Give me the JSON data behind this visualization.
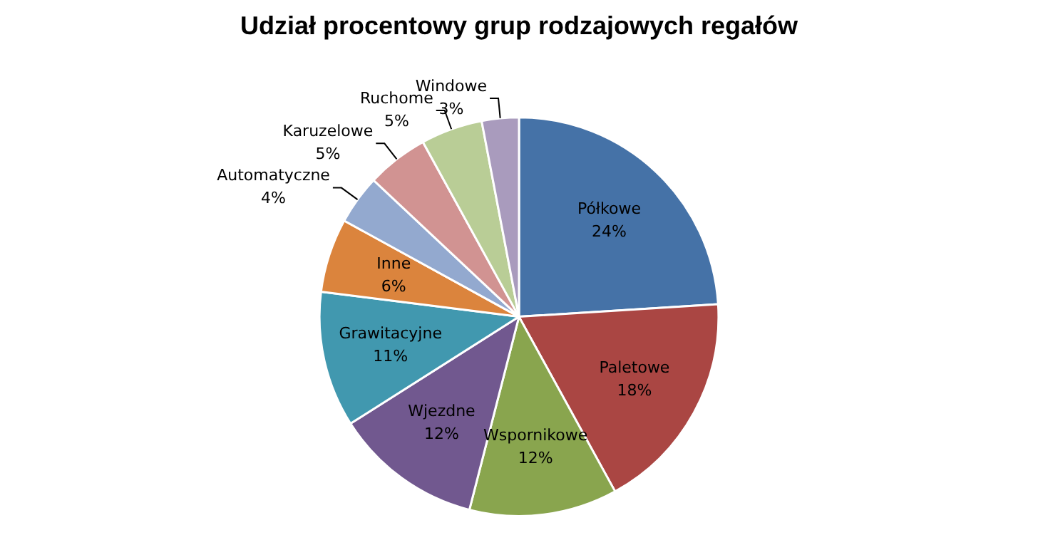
{
  "chart_data": {
    "type": "pie",
    "title": "Udział procentowy grup rodzajowych regałów",
    "categories": [
      "Półkowe",
      "Paletowe",
      "Wspornikowe",
      "Wjezdne",
      "Grawitacyjne",
      "Inne",
      "Automatyczne",
      "Karuzelowe",
      "Ruchome",
      "Windowe"
    ],
    "values": [
      24,
      18,
      12,
      12,
      11,
      6,
      4,
      5,
      5,
      3
    ],
    "value_labels": [
      "24%",
      "18%",
      "12%",
      "12%",
      "11%",
      "6%",
      "4%",
      "5%",
      "5%",
      "3%"
    ],
    "colors": [
      "#4572a7",
      "#aa4643",
      "#89a54e",
      "#71588f",
      "#4198af",
      "#db843d",
      "#93a9cf",
      "#d19392",
      "#b9cd96",
      "#a99bbd"
    ],
    "legend": false
  }
}
